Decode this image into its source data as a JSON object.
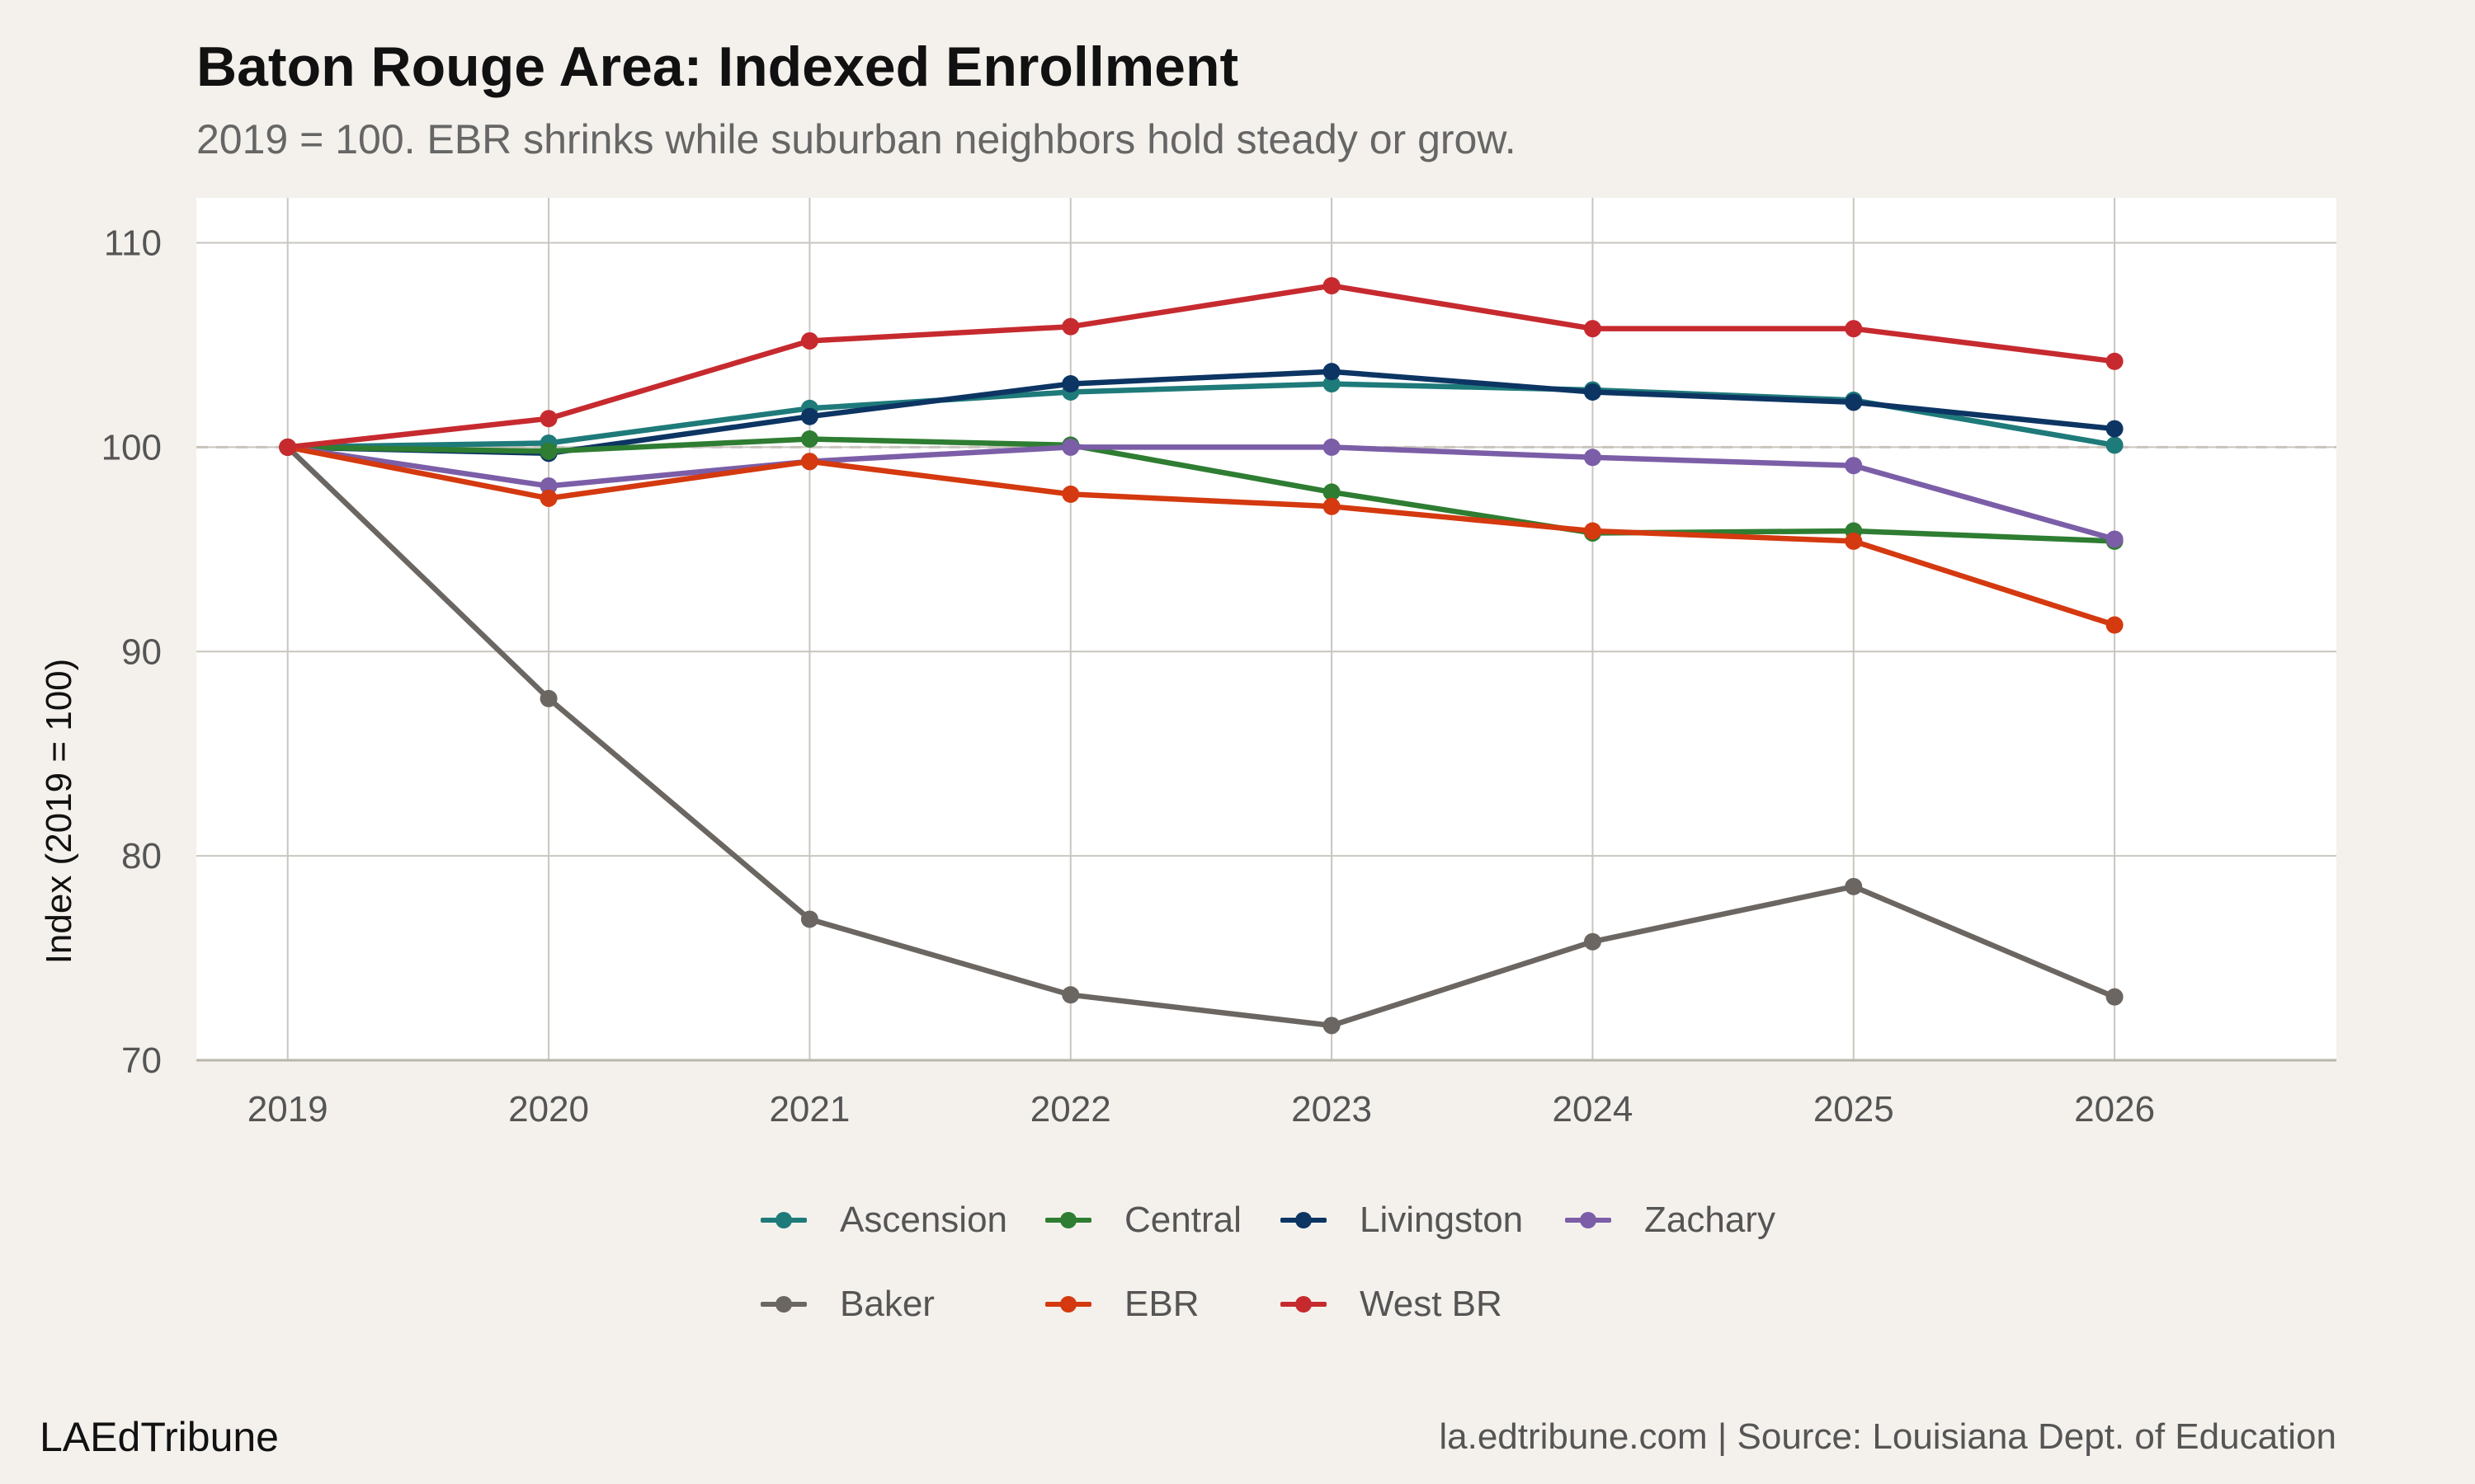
{
  "header": {
    "title": "Baton Rouge Area: Indexed Enrollment",
    "subtitle": "2019 = 100. EBR shrinks while suburban neighbors hold steady or grow."
  },
  "footer": {
    "brand": "LAEdTribune",
    "source": "la.edtribune.com | Source: Louisiana Dept. of Education"
  },
  "colors": {
    "background": "#f4f1ec",
    "panel": "#ffffff",
    "grid": "#c9c6bf",
    "reference_line": "#c8c4bc"
  },
  "chart_data": {
    "type": "line",
    "title": "Baton Rouge Area: Indexed Enrollment",
    "subtitle": "2019 = 100. EBR shrinks while suburban neighbors hold steady or grow.",
    "xlabel": "",
    "ylabel": "Index (2019 = 100)",
    "x": [
      2019,
      2020,
      2021,
      2022,
      2023,
      2024,
      2025,
      2026
    ],
    "xlim": [
      2018.65,
      2026.85
    ],
    "ylim": [
      70,
      112.2
    ],
    "yticks": [
      70,
      80,
      90,
      100,
      110
    ],
    "grid": true,
    "reference_line": {
      "y": 100,
      "style": "dashed"
    },
    "legend_position": "bottom",
    "series": [
      {
        "name": "Baker",
        "color": "#6b6661",
        "values": [
          100,
          87.7,
          76.9,
          73.2,
          71.7,
          75.8,
          78.5,
          73.1
        ]
      },
      {
        "name": "Ascension",
        "color": "#1f7a7a",
        "values": [
          100,
          100.2,
          101.9,
          102.7,
          103.1,
          102.8,
          102.3,
          100.1
        ]
      },
      {
        "name": "Livingston",
        "color": "#0d3563",
        "values": [
          100,
          99.7,
          101.5,
          103.1,
          103.7,
          102.7,
          102.2,
          100.9
        ]
      },
      {
        "name": "Central",
        "color": "#2e7d32",
        "values": [
          100,
          99.8,
          100.4,
          100.1,
          97.8,
          95.8,
          95.9,
          95.4
        ]
      },
      {
        "name": "Zachary",
        "color": "#7b5ea7",
        "values": [
          100,
          98.1,
          99.3,
          100.0,
          100.0,
          99.5,
          99.1,
          95.5
        ]
      },
      {
        "name": "EBR",
        "color": "#d4390f",
        "values": [
          100,
          97.5,
          99.3,
          97.7,
          97.1,
          95.9,
          95.4,
          91.3
        ]
      },
      {
        "name": "West BR",
        "color": "#c62a2f",
        "values": [
          100,
          101.4,
          105.2,
          105.9,
          107.9,
          105.8,
          105.8,
          104.2
        ]
      }
    ],
    "legend_order": [
      "Ascension",
      "Central",
      "Livingston",
      "Zachary",
      "Baker",
      "EBR",
      "West BR"
    ]
  }
}
